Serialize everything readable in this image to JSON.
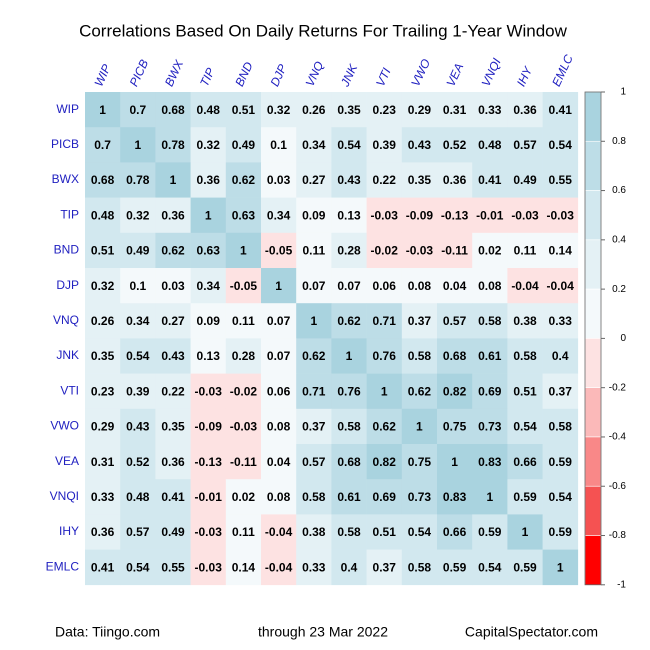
{
  "chart_data": {
    "type": "heatmap",
    "title": "Correlations Based On Daily Returns For Trailing 1-Year Window",
    "categories": [
      "WIP",
      "PICB",
      "BWX",
      "TIP",
      "BND",
      "DJP",
      "VNQ",
      "JNK",
      "VTI",
      "VWO",
      "VEA",
      "VNQI",
      "IHY",
      "EMLC"
    ],
    "values": [
      [
        1,
        0.7,
        0.68,
        0.48,
        0.51,
        0.32,
        0.26,
        0.35,
        0.23,
        0.29,
        0.31,
        0.33,
        0.36,
        0.41
      ],
      [
        0.7,
        1,
        0.78,
        0.32,
        0.49,
        0.1,
        0.34,
        0.54,
        0.39,
        0.43,
        0.52,
        0.48,
        0.57,
        0.54
      ],
      [
        0.68,
        0.78,
        1,
        0.36,
        0.62,
        0.03,
        0.27,
        0.43,
        0.22,
        0.35,
        0.36,
        0.41,
        0.49,
        0.55
      ],
      [
        0.48,
        0.32,
        0.36,
        1,
        0.63,
        0.34,
        0.09,
        0.13,
        -0.03,
        -0.09,
        -0.13,
        -0.01,
        -0.03,
        -0.03
      ],
      [
        0.51,
        0.49,
        0.62,
        0.63,
        1,
        -0.05,
        0.11,
        0.28,
        -0.02,
        -0.03,
        -0.11,
        0.02,
        0.11,
        0.14
      ],
      [
        0.32,
        0.1,
        0.03,
        0.34,
        -0.05,
        1,
        0.07,
        0.07,
        0.06,
        0.08,
        0.04,
        0.08,
        -0.04,
        -0.04
      ],
      [
        0.26,
        0.34,
        0.27,
        0.09,
        0.11,
        0.07,
        1,
        0.62,
        0.71,
        0.37,
        0.57,
        0.58,
        0.38,
        0.33
      ],
      [
        0.35,
        0.54,
        0.43,
        0.13,
        0.28,
        0.07,
        0.62,
        1,
        0.76,
        0.58,
        0.68,
        0.61,
        0.58,
        0.4
      ],
      [
        0.23,
        0.39,
        0.22,
        -0.03,
        -0.02,
        0.06,
        0.71,
        0.76,
        1,
        0.62,
        0.82,
        0.69,
        0.51,
        0.37
      ],
      [
        0.29,
        0.43,
        0.35,
        -0.09,
        -0.03,
        0.08,
        0.37,
        0.58,
        0.62,
        1,
        0.75,
        0.73,
        0.54,
        0.58
      ],
      [
        0.31,
        0.52,
        0.36,
        -0.13,
        -0.11,
        0.04,
        0.57,
        0.68,
        0.82,
        0.75,
        1,
        0.83,
        0.66,
        0.59
      ],
      [
        0.33,
        0.48,
        0.41,
        -0.01,
        0.02,
        0.08,
        0.58,
        0.61,
        0.69,
        0.73,
        0.83,
        1,
        0.59,
        0.54
      ],
      [
        0.36,
        0.57,
        0.49,
        -0.03,
        0.11,
        -0.04,
        0.38,
        0.58,
        0.51,
        0.54,
        0.66,
        0.59,
        1,
        0.59
      ],
      [
        0.41,
        0.54,
        0.55,
        -0.03,
        0.14,
        -0.04,
        0.33,
        0.4,
        0.37,
        0.58,
        0.59,
        0.54,
        0.59,
        1
      ]
    ],
    "clim": [
      -1,
      1
    ],
    "colorbar_ticks": [
      1,
      0.8,
      0.6,
      0.4,
      0.2,
      0,
      -0.2,
      -0.4,
      -0.6,
      -0.8,
      -1
    ],
    "colorbar_colors": [
      "#a9d3df",
      "#bddde7",
      "#d2e8ef",
      "#e4f1f5",
      "#f4f9fb",
      "#fde2e2",
      "#fbb9b9",
      "#f98888",
      "#f55252",
      "#ff0000"
    ],
    "annotations": [
      "Data: Tiingo.com",
      "through 23 Mar 2022",
      "CapitalSpectator.com"
    ]
  }
}
